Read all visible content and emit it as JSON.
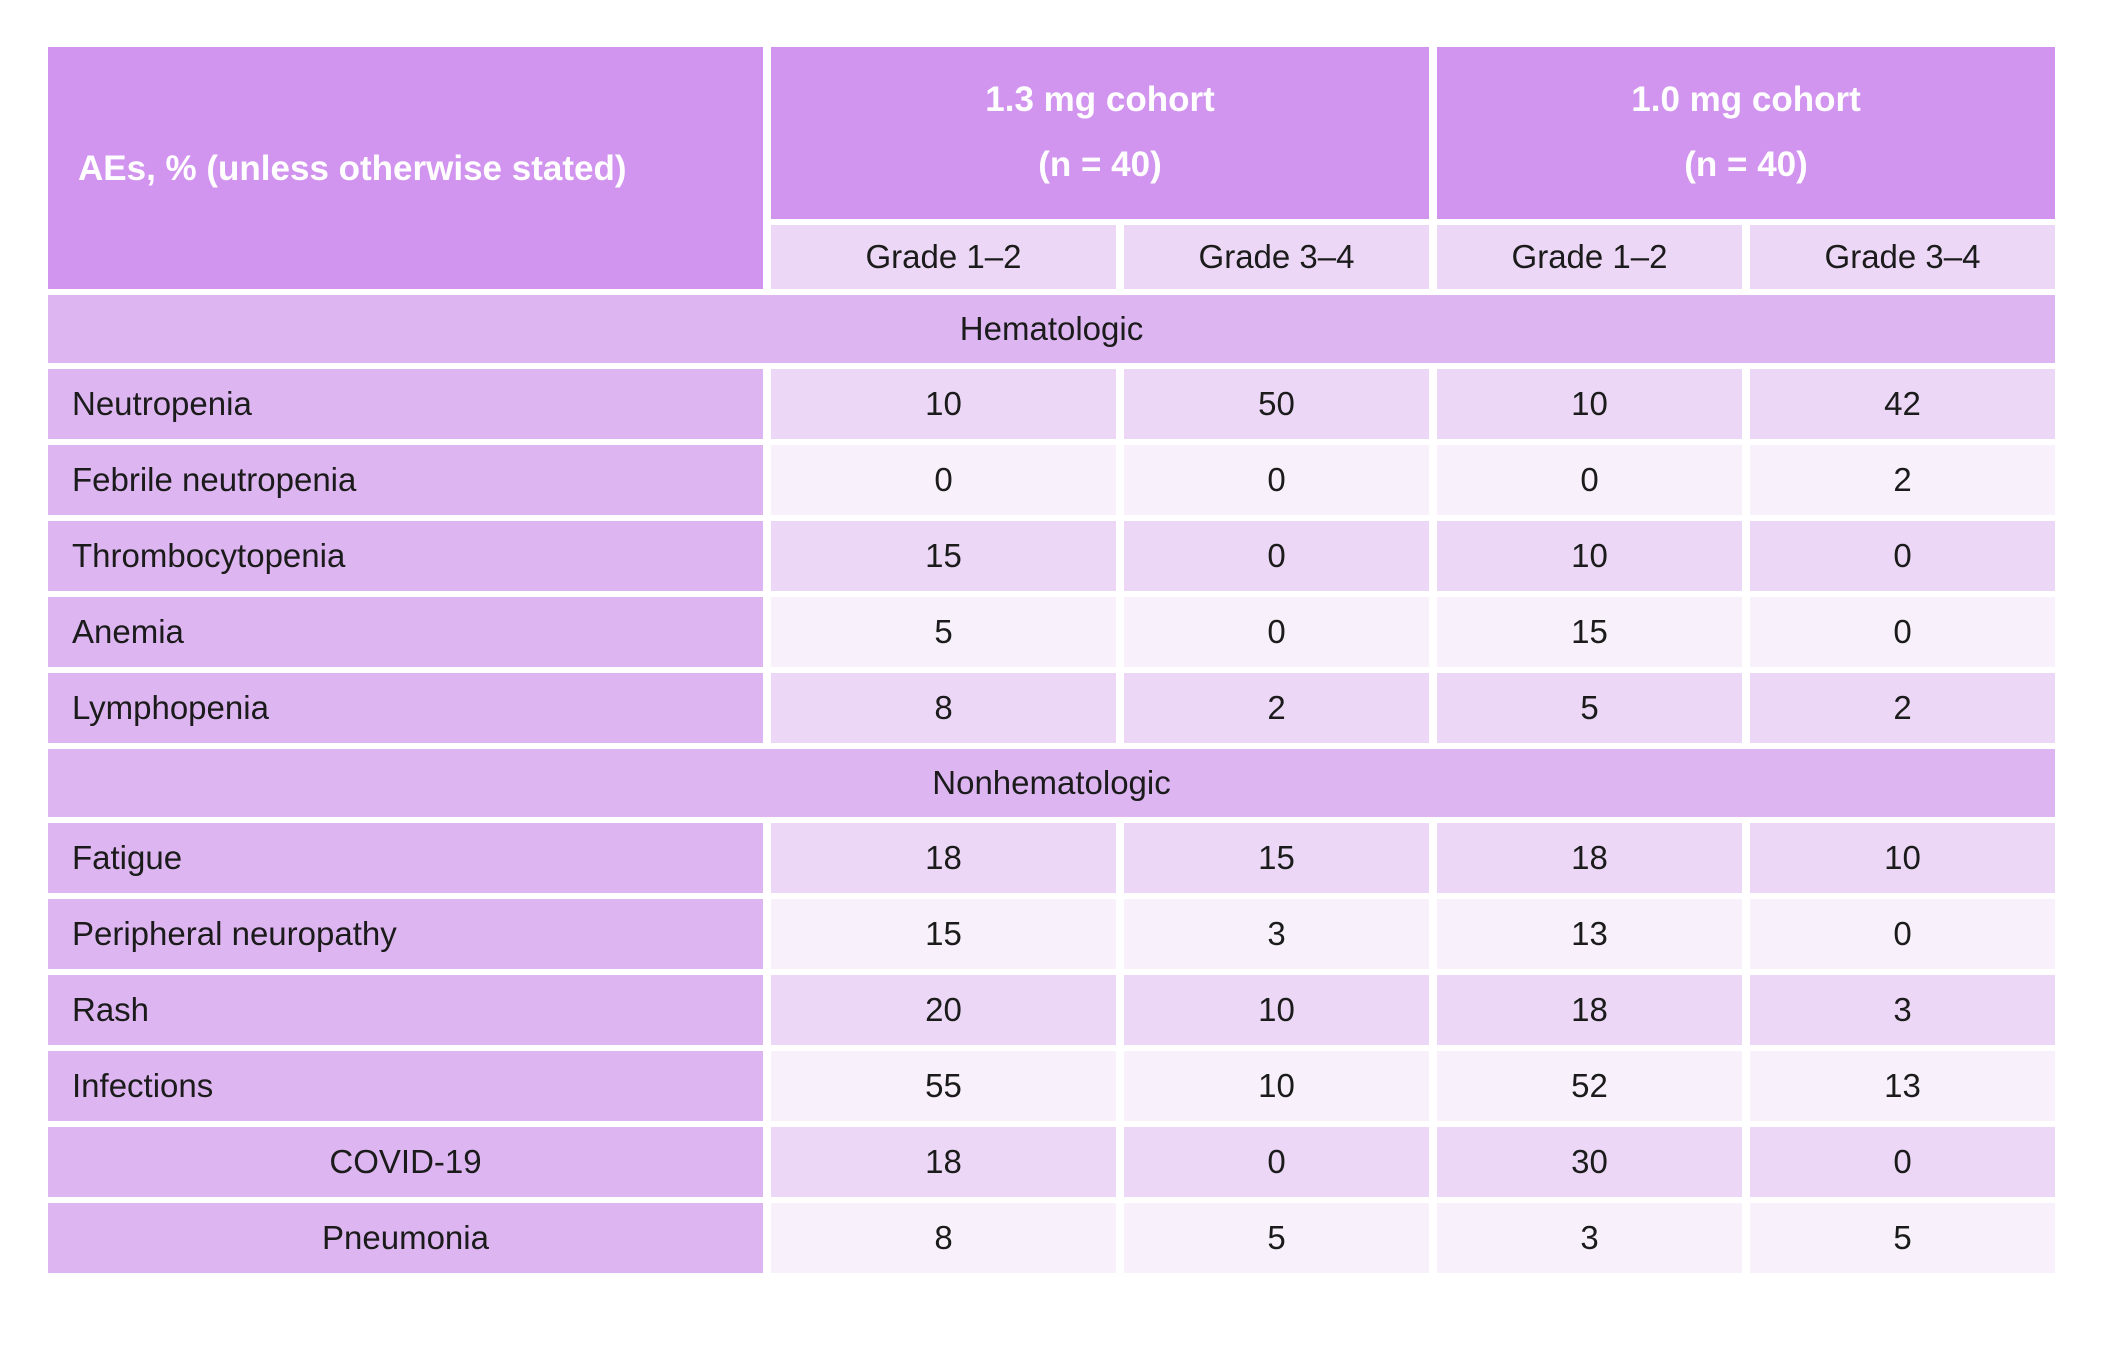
{
  "colors": {
    "header_purple": "#d295ef",
    "section_purple": "#ddb5f1",
    "light_purple": "#ecd8f6",
    "pale_purple": "#f8f1fb",
    "header_text": "#ffffff",
    "body_text": "#1b1b1b"
  },
  "table": {
    "corner_header": "AEs, % (unless otherwise stated)",
    "cohorts": [
      {
        "line1": "1.3 mg cohort",
        "line2": "(n = 40)"
      },
      {
        "line1": "1.0 mg cohort",
        "line2": "(n = 40)"
      }
    ],
    "grade_headers": [
      "Grade 1–2",
      "Grade 3–4",
      "Grade 1–2",
      "Grade 3–4"
    ],
    "sections": [
      {
        "title": "Hematologic",
        "rows": [
          {
            "label": "Neutropenia",
            "centered": false,
            "values": [
              "10",
              "50",
              "10",
              "42"
            ]
          },
          {
            "label": "Febrile neutropenia",
            "centered": false,
            "values": [
              "0",
              "0",
              "0",
              "2"
            ]
          },
          {
            "label": "Thrombocytopenia",
            "centered": false,
            "values": [
              "15",
              "0",
              "10",
              "0"
            ]
          },
          {
            "label": "Anemia",
            "centered": false,
            "values": [
              "5",
              "0",
              "15",
              "0"
            ]
          },
          {
            "label": "Lymphopenia",
            "centered": false,
            "values": [
              "8",
              "2",
              "5",
              "2"
            ]
          }
        ]
      },
      {
        "title": "Nonhematologic",
        "rows": [
          {
            "label": "Fatigue",
            "centered": false,
            "values": [
              "18",
              "15",
              "18",
              "10"
            ]
          },
          {
            "label": "Peripheral neuropathy",
            "centered": false,
            "values": [
              "15",
              "3",
              "13",
              "0"
            ]
          },
          {
            "label": "Rash",
            "centered": false,
            "values": [
              "20",
              "10",
              "18",
              "3"
            ]
          },
          {
            "label": "Infections",
            "centered": false,
            "values": [
              "55",
              "10",
              "52",
              "13"
            ]
          },
          {
            "label": "COVID-19",
            "centered": true,
            "values": [
              "18",
              "0",
              "30",
              "0"
            ]
          },
          {
            "label": "Pneumonia",
            "centered": true,
            "values": [
              "8",
              "5",
              "3",
              "5"
            ]
          }
        ]
      }
    ]
  }
}
